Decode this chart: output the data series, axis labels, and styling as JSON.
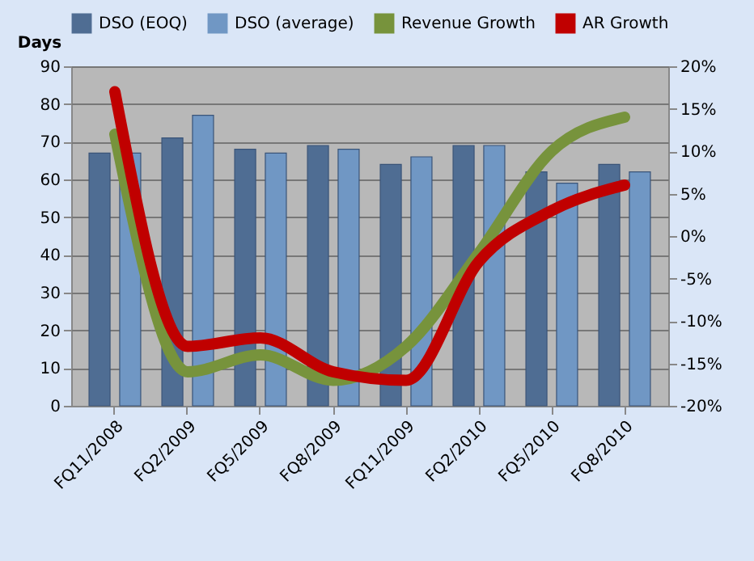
{
  "chart_data": {
    "type": "bar",
    "ylabel": "Days",
    "categories": [
      "FQ11/2008",
      "FQ2/2009",
      "FQ5/2009",
      "FQ8/2009",
      "FQ11/2009",
      "FQ2/2010",
      "FQ5/2010",
      "FQ8/2010"
    ],
    "series": [
      {
        "name": "DSO (EOQ)",
        "color": "#4f6d93",
        "values": [
          67,
          71,
          68,
          69,
          64,
          69,
          62,
          64
        ]
      },
      {
        "name": "DSO (average)",
        "color": "#7097c4",
        "values": [
          67,
          77,
          67,
          68,
          66,
          69,
          59,
          62
        ]
      },
      {
        "name": "Revenue Growth",
        "type": "line",
        "axis": "y2",
        "color": "#77933c",
        "values": [
          12,
          -16,
          -14,
          -17,
          -13,
          -2,
          10,
          14
        ]
      },
      {
        "name": "AR Growth",
        "type": "line",
        "axis": "y2",
        "color": "#c00000",
        "values": [
          17,
          -13,
          -12,
          -16,
          -17,
          -3,
          3,
          6
        ]
      }
    ],
    "ylim": [
      0,
      90
    ],
    "yticks": [
      0,
      10,
      20,
      30,
      40,
      50,
      60,
      70,
      80,
      90
    ],
    "y2lim": [
      -20,
      20
    ],
    "y2ticks": [
      {
        "value": -20,
        "label": "-20%"
      },
      {
        "value": -15,
        "label": "-15%"
      },
      {
        "value": -10,
        "label": "-10%"
      },
      {
        "value": -5,
        "label": "-5%"
      },
      {
        "value": 0,
        "label": "0%"
      },
      {
        "value": 5,
        "label": "5%"
      },
      {
        "value": 10,
        "label": "10%"
      },
      {
        "value": 15,
        "label": "15%"
      },
      {
        "value": 20,
        "label": "20%"
      }
    ],
    "grid": "y",
    "legend": "top"
  }
}
